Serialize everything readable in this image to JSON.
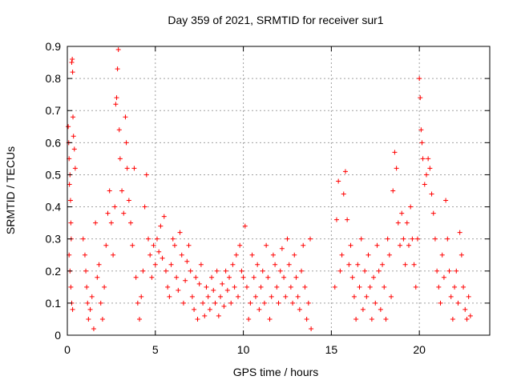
{
  "chart_data": {
    "type": "scatter",
    "title": "Day 359 of 2021, SRMTID for receiver sur1",
    "xlabel": "GPS time / hours",
    "ylabel": "SRMTID / TECUs",
    "xlim": [
      0,
      24
    ],
    "ylim": [
      0,
      0.9
    ],
    "xticks": [
      0,
      5,
      10,
      15,
      20
    ],
    "yticks": [
      0,
      0.1,
      0.2,
      0.3,
      0.4,
      0.5,
      0.6,
      0.7,
      0.8,
      0.9
    ],
    "xtick_labels": [
      "0",
      "5",
      "10",
      "15",
      "20"
    ],
    "ytick_labels": [
      "0",
      "0.1",
      "0.2",
      "0.3",
      "0.4",
      "0.5",
      "0.6",
      "0.7",
      "0.8",
      "0.9"
    ],
    "grid": true,
    "marker": "+",
    "color": "#ff0000",
    "series": [
      {
        "name": "SRMTID",
        "points": [
          [
            0.05,
            0.65
          ],
          [
            0.08,
            0.6
          ],
          [
            0.1,
            0.55
          ],
          [
            0.12,
            0.47
          ],
          [
            0.15,
            0.5
          ],
          [
            0.18,
            0.42
          ],
          [
            0.2,
            0.35
          ],
          [
            0.22,
            0.3
          ],
          [
            0.25,
            0.85
          ],
          [
            0.28,
            0.86
          ],
          [
            0.3,
            0.82
          ],
          [
            0.32,
            0.68
          ],
          [
            0.1,
            0.25
          ],
          [
            0.15,
            0.2
          ],
          [
            0.2,
            0.15
          ],
          [
            0.25,
            0.1
          ],
          [
            0.3,
            0.08
          ],
          [
            0.35,
            0.62
          ],
          [
            0.4,
            0.58
          ],
          [
            0.45,
            0.52
          ],
          [
            0.9,
            0.3
          ],
          [
            1.0,
            0.25
          ],
          [
            1.05,
            0.2
          ],
          [
            1.1,
            0.15
          ],
          [
            1.15,
            0.1
          ],
          [
            1.2,
            0.05
          ],
          [
            1.3,
            0.08
          ],
          [
            1.4,
            0.12
          ],
          [
            1.5,
            0.02
          ],
          [
            1.6,
            0.35
          ],
          [
            1.7,
            0.18
          ],
          [
            1.8,
            0.22
          ],
          [
            1.9,
            0.1
          ],
          [
            2.0,
            0.05
          ],
          [
            2.1,
            0.15
          ],
          [
            2.2,
            0.28
          ],
          [
            2.3,
            0.38
          ],
          [
            2.4,
            0.45
          ],
          [
            2.5,
            0.35
          ],
          [
            2.6,
            0.25
          ],
          [
            2.7,
            0.4
          ],
          [
            2.75,
            0.72
          ],
          [
            2.8,
            0.74
          ],
          [
            2.85,
            0.83
          ],
          [
            2.9,
            0.89
          ],
          [
            2.95,
            0.64
          ],
          [
            3.0,
            0.55
          ],
          [
            3.1,
            0.45
          ],
          [
            3.2,
            0.38
          ],
          [
            3.3,
            0.68
          ],
          [
            3.35,
            0.6
          ],
          [
            3.4,
            0.52
          ],
          [
            3.5,
            0.42
          ],
          [
            3.6,
            0.35
          ],
          [
            3.7,
            0.28
          ],
          [
            3.8,
            0.52
          ],
          [
            3.9,
            0.18
          ],
          [
            4.0,
            0.1
          ],
          [
            4.1,
            0.05
          ],
          [
            4.2,
            0.12
          ],
          [
            4.3,
            0.2
          ],
          [
            4.4,
            0.4
          ],
          [
            4.5,
            0.5
          ],
          [
            4.6,
            0.3
          ],
          [
            4.7,
            0.25
          ],
          [
            4.8,
            0.18
          ],
          [
            4.9,
            0.28
          ],
          [
            5.0,
            0.22
          ],
          [
            5.1,
            0.3
          ],
          [
            5.2,
            0.26
          ],
          [
            5.3,
            0.34
          ],
          [
            5.4,
            0.24
          ],
          [
            5.5,
            0.37
          ],
          [
            5.6,
            0.2
          ],
          [
            5.7,
            0.15
          ],
          [
            5.8,
            0.12
          ],
          [
            5.9,
            0.22
          ],
          [
            6.0,
            0.3
          ],
          [
            6.1,
            0.28
          ],
          [
            6.2,
            0.18
          ],
          [
            6.3,
            0.14
          ],
          [
            6.4,
            0.32
          ],
          [
            6.5,
            0.25
          ],
          [
            6.6,
            0.1
          ],
          [
            6.7,
            0.17
          ],
          [
            6.8,
            0.23
          ],
          [
            6.9,
            0.28
          ],
          [
            7.0,
            0.2
          ],
          [
            7.1,
            0.12
          ],
          [
            7.2,
            0.08
          ],
          [
            7.3,
            0.18
          ],
          [
            7.4,
            0.05
          ],
          [
            7.5,
            0.16
          ],
          [
            7.6,
            0.22
          ],
          [
            7.7,
            0.1
          ],
          [
            7.8,
            0.06
          ],
          [
            7.9,
            0.15
          ],
          [
            8.0,
            0.12
          ],
          [
            8.1,
            0.08
          ],
          [
            8.2,
            0.18
          ],
          [
            8.3,
            0.14
          ],
          [
            8.4,
            0.1
          ],
          [
            8.5,
            0.2
          ],
          [
            8.6,
            0.06
          ],
          [
            8.7,
            0.12
          ],
          [
            8.8,
            0.16
          ],
          [
            8.9,
            0.09
          ],
          [
            9.0,
            0.2
          ],
          [
            9.1,
            0.14
          ],
          [
            9.2,
            0.18
          ],
          [
            9.3,
            0.1
          ],
          [
            9.4,
            0.22
          ],
          [
            9.5,
            0.15
          ],
          [
            9.6,
            0.25
          ],
          [
            9.7,
            0.12
          ],
          [
            9.8,
            0.28
          ],
          [
            9.9,
            0.2
          ],
          [
            10.0,
            0.18
          ],
          [
            10.1,
            0.34
          ],
          [
            10.2,
            0.15
          ],
          [
            10.3,
            0.05
          ],
          [
            10.4,
            0.1
          ],
          [
            10.5,
            0.25
          ],
          [
            10.6,
            0.18
          ],
          [
            10.7,
            0.12
          ],
          [
            10.8,
            0.22
          ],
          [
            10.9,
            0.08
          ],
          [
            11.0,
            0.15
          ],
          [
            11.1,
            0.2
          ],
          [
            11.2,
            0.1
          ],
          [
            11.3,
            0.28
          ],
          [
            11.4,
            0.18
          ],
          [
            11.5,
            0.05
          ],
          [
            11.6,
            0.12
          ],
          [
            11.7,
            0.25
          ],
          [
            11.8,
            0.22
          ],
          [
            11.9,
            0.15
          ],
          [
            12.0,
            0.1
          ],
          [
            12.1,
            0.2
          ],
          [
            12.2,
            0.27
          ],
          [
            12.3,
            0.18
          ],
          [
            12.4,
            0.12
          ],
          [
            12.5,
            0.3
          ],
          [
            12.6,
            0.22
          ],
          [
            12.7,
            0.15
          ],
          [
            12.8,
            0.1
          ],
          [
            12.9,
            0.25
          ],
          [
            13.0,
            0.18
          ],
          [
            13.1,
            0.12
          ],
          [
            13.2,
            0.08
          ],
          [
            13.3,
            0.2
          ],
          [
            13.4,
            0.28
          ],
          [
            13.5,
            0.15
          ],
          [
            13.6,
            0.05
          ],
          [
            13.7,
            0.1
          ],
          [
            13.8,
            0.3
          ],
          [
            13.85,
            0.02
          ],
          [
            15.2,
            0.15
          ],
          [
            15.3,
            0.36
          ],
          [
            15.4,
            0.48
          ],
          [
            15.5,
            0.2
          ],
          [
            15.6,
            0.25
          ],
          [
            15.7,
            0.44
          ],
          [
            15.8,
            0.51
          ],
          [
            15.9,
            0.36
          ],
          [
            16.0,
            0.22
          ],
          [
            16.1,
            0.28
          ],
          [
            16.2,
            0.18
          ],
          [
            16.3,
            0.12
          ],
          [
            16.4,
            0.05
          ],
          [
            16.5,
            0.22
          ],
          [
            16.6,
            0.15
          ],
          [
            16.7,
            0.3
          ],
          [
            16.8,
            0.08
          ],
          [
            16.9,
            0.2
          ],
          [
            17.0,
            0.12
          ],
          [
            17.1,
            0.25
          ],
          [
            17.2,
            0.15
          ],
          [
            17.3,
            0.05
          ],
          [
            17.4,
            0.18
          ],
          [
            17.5,
            0.1
          ],
          [
            17.6,
            0.28
          ],
          [
            17.7,
            0.2
          ],
          [
            17.8,
            0.08
          ],
          [
            17.9,
            0.22
          ],
          [
            18.0,
            0.15
          ],
          [
            18.1,
            0.05
          ],
          [
            18.2,
            0.3
          ],
          [
            18.3,
            0.25
          ],
          [
            18.4,
            0.12
          ],
          [
            18.5,
            0.45
          ],
          [
            18.6,
            0.57
          ],
          [
            18.7,
            0.52
          ],
          [
            18.8,
            0.35
          ],
          [
            18.9,
            0.28
          ],
          [
            19.0,
            0.38
          ],
          [
            19.1,
            0.3
          ],
          [
            19.2,
            0.22
          ],
          [
            19.3,
            0.35
          ],
          [
            19.4,
            0.28
          ],
          [
            19.5,
            0.4
          ],
          [
            19.6,
            0.3
          ],
          [
            19.7,
            0.22
          ],
          [
            19.8,
            0.15
          ],
          [
            19.9,
            0.3
          ],
          [
            20.0,
            0.8
          ],
          [
            20.05,
            0.74
          ],
          [
            20.1,
            0.64
          ],
          [
            20.15,
            0.6
          ],
          [
            20.2,
            0.55
          ],
          [
            20.3,
            0.47
          ],
          [
            20.4,
            0.5
          ],
          [
            20.5,
            0.55
          ],
          [
            20.6,
            0.52
          ],
          [
            20.7,
            0.44
          ],
          [
            20.8,
            0.38
          ],
          [
            20.9,
            0.3
          ],
          [
            21.0,
            0.2
          ],
          [
            21.1,
            0.15
          ],
          [
            21.2,
            0.1
          ],
          [
            21.3,
            0.25
          ],
          [
            21.4,
            0.18
          ],
          [
            21.5,
            0.42
          ],
          [
            21.6,
            0.3
          ],
          [
            21.7,
            0.2
          ],
          [
            21.8,
            0.12
          ],
          [
            21.9,
            0.05
          ],
          [
            22.0,
            0.15
          ],
          [
            22.1,
            0.2
          ],
          [
            22.2,
            0.1
          ],
          [
            22.3,
            0.32
          ],
          [
            22.4,
            0.25
          ],
          [
            22.5,
            0.15
          ],
          [
            22.6,
            0.08
          ],
          [
            22.7,
            0.05
          ],
          [
            22.8,
            0.12
          ],
          [
            22.9,
            0.06
          ]
        ]
      }
    ]
  }
}
